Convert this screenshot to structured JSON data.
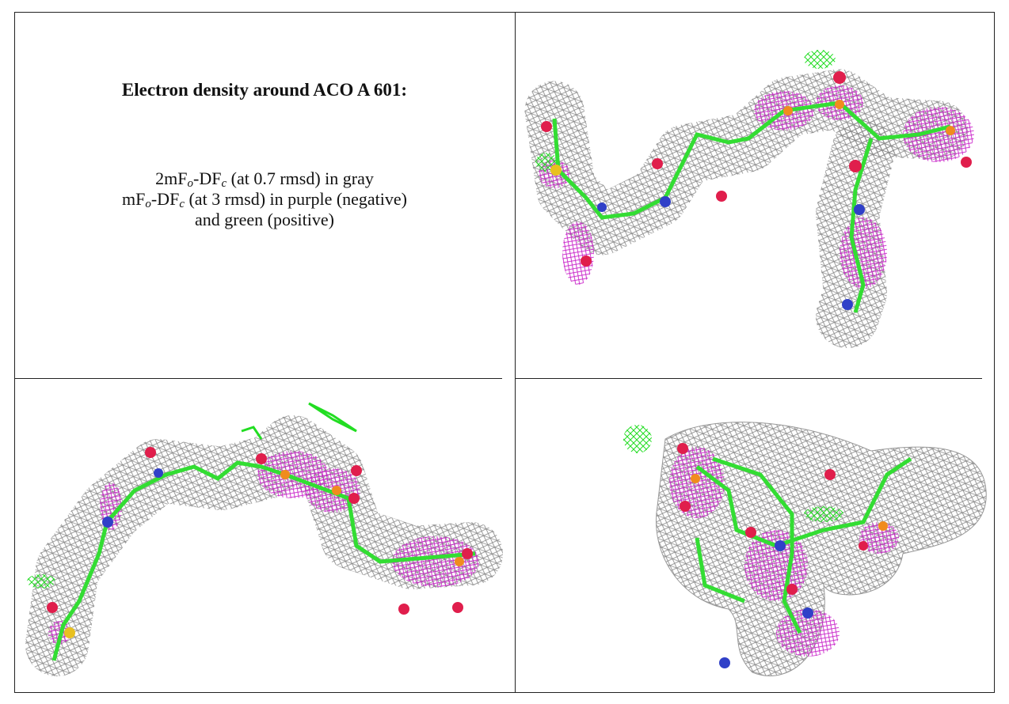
{
  "caption": {
    "title": "Electron density around ACO A 601:",
    "lines": [
      [
        "2mF",
        "o",
        "-DF",
        "c",
        " (at 0.7 rmsd) in gray"
      ],
      [
        "mF",
        "o",
        "-DF",
        "c",
        " (at 3 rmsd) in purple (negative)"
      ],
      [
        "and green (positive)"
      ]
    ]
  }
}
